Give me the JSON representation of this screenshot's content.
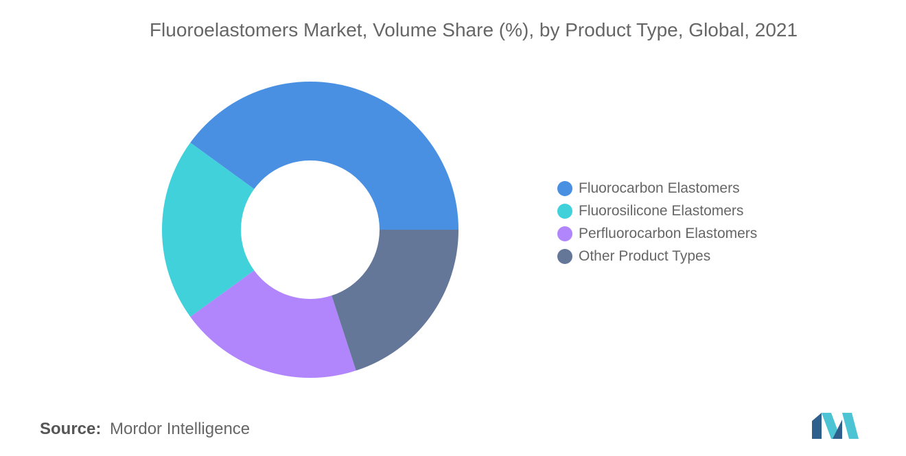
{
  "chart_data": {
    "type": "pie",
    "title": "Fluoroelastomers Market, Volume Share (%), by Product Type, Global, 2021",
    "donut": true,
    "legend_position": "right",
    "series": [
      {
        "name": "Fluorocarbon Elastomers",
        "value": 40,
        "color": "#4a90e2"
      },
      {
        "name": "Fluorosilicone Elastomers",
        "value": 20,
        "color": "#40d1db"
      },
      {
        "name": "Perfluorocarbon Elastomers",
        "value": 20,
        "color": "#b186fd"
      },
      {
        "name": "Other Product Types",
        "value": 20,
        "color": "#657799"
      }
    ]
  },
  "source": {
    "label": "Source:",
    "text": "Mordor Intelligence"
  },
  "logo": {
    "icon": "mordor-intelligence-logo-icon",
    "colors": [
      "#2f5f8c",
      "#4cc4d4"
    ]
  }
}
